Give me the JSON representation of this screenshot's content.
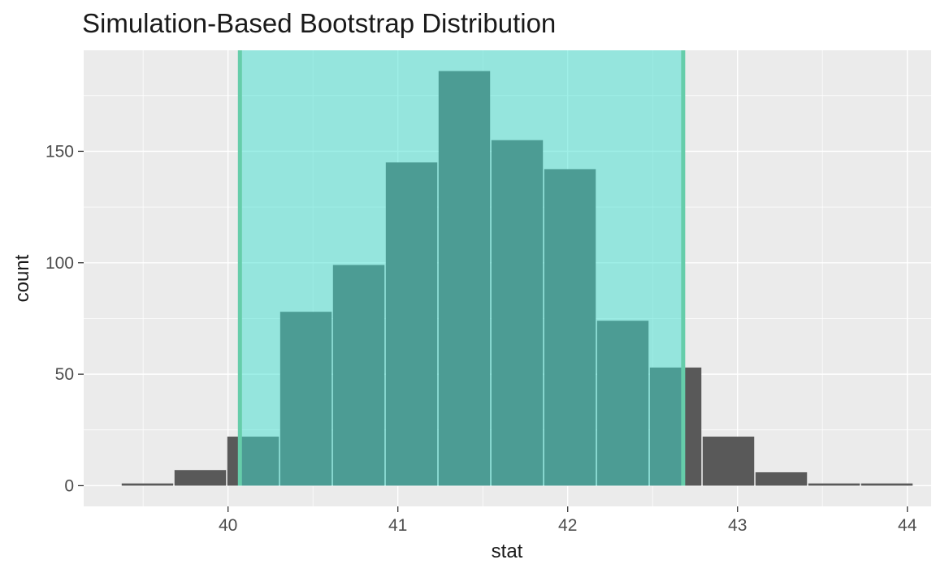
{
  "chart_data": {
    "type": "bar",
    "title": "Simulation-Based Bootstrap Distribution",
    "xlabel": "stat",
    "ylabel": "count",
    "bin_start": 39.37,
    "bin_width": 0.311,
    "counts": [
      1,
      7,
      22,
      78,
      99,
      145,
      186,
      155,
      142,
      74,
      53,
      22,
      6,
      1,
      1
    ],
    "x_ticks": [
      40,
      41,
      42,
      43,
      44
    ],
    "x_minor_ticks": [
      39.5,
      40.5,
      41.5,
      42.5,
      43.5
    ],
    "y_ticks": [
      0,
      50,
      100,
      150
    ],
    "y_minor_ticks": [
      25,
      75,
      125,
      175
    ],
    "xlim": [
      39.15,
      44.14
    ],
    "ylim": [
      -9.3,
      195.3
    ],
    "grid": "on",
    "legend": "none",
    "ci": {
      "lower": 40.07,
      "upper": 42.68
    },
    "colors": {
      "panel_background": "#EBEBEB",
      "grid": "#FFFFFF",
      "bar_fill": "#595959",
      "ci_fill": "#40E0D0",
      "ci_fill_alpha": 0.5,
      "ci_line": "#66CDAA",
      "title_text": "#1A1A1A",
      "axis_text": "#4D4D4D",
      "axis_title_text": "#1A1A1A",
      "tick_mark": "#333333"
    }
  }
}
